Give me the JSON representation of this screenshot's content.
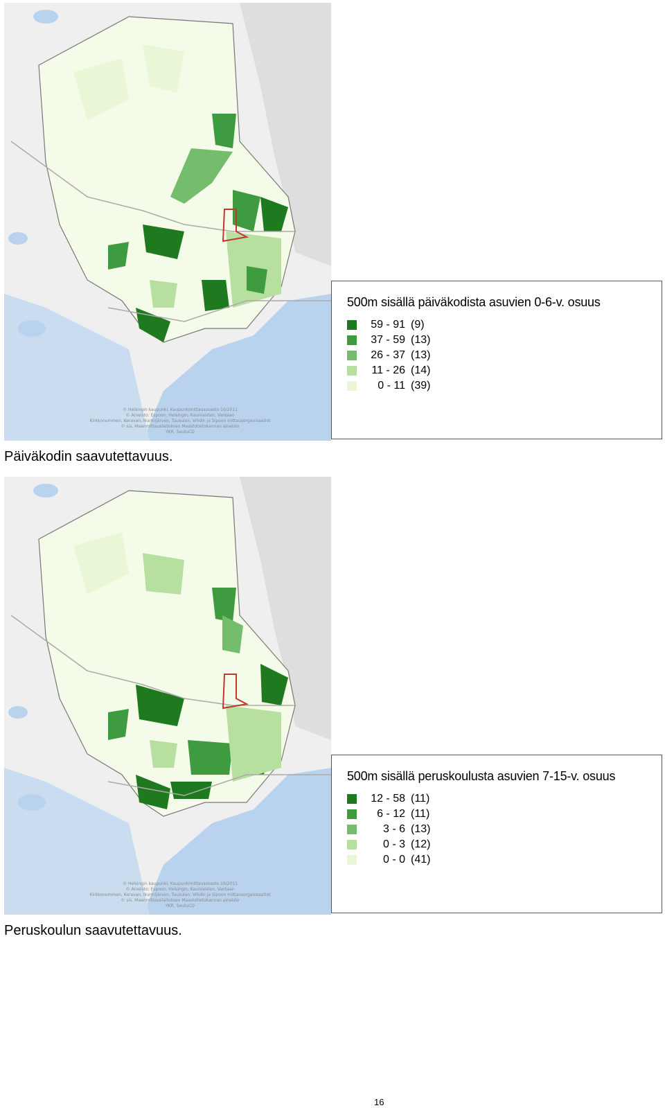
{
  "maps": [
    {
      "legend_title": "500m sisällä päiväkodista asuvien 0-6-v. osuus",
      "classes": [
        {
          "range": "59 - 91",
          "count": "(9)",
          "color": "#1f7a1f"
        },
        {
          "range": "37 - 59",
          "count": "(13)",
          "color": "#3f9b3f"
        },
        {
          "range": "26 - 37",
          "count": "(13)",
          "color": "#74bd6c"
        },
        {
          "range": "11 - 26",
          "count": "(14)",
          "color": "#b7df9f"
        },
        {
          "range": "0 - 11",
          "count": "(39)",
          "color": "#eaf7d6"
        }
      ],
      "credits": [
        "© Helsingin kaupunki, Kaupunkimittausosasto 10/2011",
        "© Aineisto: Espoon, Helsingin, Kauniaisten, Vantaan",
        "Kirkkonummen, Keravan, Nurmijärven, Tuusulan, Vihdin ja Sipoon mittausorganisaatiot",
        "© sis. Maanmittauslaitoksen Maastotietokannan aineisto",
        "YKR, SeutuCD"
      ],
      "caption": "Päiväkodin saavutettavuus."
    },
    {
      "legend_title": "500m sisällä peruskoulusta asuvien 7-15-v. osuus",
      "classes": [
        {
          "range": "12 - 58",
          "count": "(11)",
          "color": "#1f7a1f"
        },
        {
          "range": "6 - 12",
          "count": "(11)",
          "color": "#3f9b3f"
        },
        {
          "range": "3 - 6",
          "count": "(13)",
          "color": "#74bd6c"
        },
        {
          "range": "0 - 3",
          "count": "(12)",
          "color": "#b7df9f"
        },
        {
          "range": "0 - 0",
          "count": "(41)",
          "color": "#eaf7d6"
        }
      ],
      "credits": [
        "© Helsingin kaupunki, Kaupunkimittausosasto 10/2011",
        "© Aineisto: Espoon, Helsingin, Kauniaisten, Vantaan",
        "Kirkkonummen, Keravan, Nurmijärven, Tuusulan, Vihdin ja Sipoon mittausorganisaatiot",
        "© sis. Maanmittauslaitoksen Maastotietokannan aineisto",
        "YKR, SeutuCD"
      ],
      "caption": "Peruskoulun saavutettavuus."
    }
  ],
  "colors": {
    "water": "#b9d3ee",
    "boundary": "#777777",
    "study_area": "#c0392b",
    "urban": "#d6d6d6"
  },
  "page_number": "16"
}
